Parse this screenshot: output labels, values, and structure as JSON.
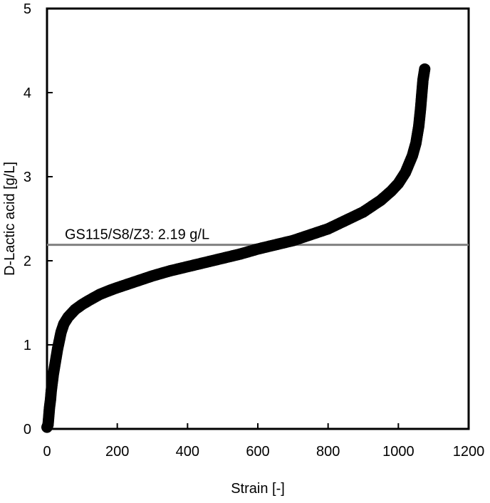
{
  "chart_data": {
    "type": "scatter",
    "title": "",
    "xlabel": "Strain [-]",
    "ylabel": "D-Lactic acid [g/L]",
    "xlim": [
      0,
      1200
    ],
    "ylim": [
      0,
      5
    ],
    "x_ticks": [
      "0",
      "200",
      "400",
      "600",
      "800",
      "1000",
      "1200"
    ],
    "y_ticks": [
      "0",
      "1",
      "2",
      "3",
      "4",
      "5"
    ],
    "grid": false,
    "legend": "none",
    "marker_color": "#000000",
    "reference_line": {
      "label": "GS115/S8/Z3: 2.19 g/L",
      "y": 2.19,
      "color": "#808080"
    },
    "series": [
      {
        "points": [
          [
            0,
            0.02
          ],
          [
            3,
            0.05
          ],
          [
            5,
            0.15
          ],
          [
            7,
            0.25
          ],
          [
            10,
            0.35
          ],
          [
            12,
            0.45
          ],
          [
            15,
            0.55
          ],
          [
            18,
            0.65
          ],
          [
            22,
            0.75
          ],
          [
            26,
            0.85
          ],
          [
            30,
            0.95
          ],
          [
            35,
            1.05
          ],
          [
            40,
            1.15
          ],
          [
            48,
            1.25
          ],
          [
            60,
            1.33
          ],
          [
            80,
            1.42
          ],
          [
            100,
            1.48
          ],
          [
            120,
            1.53
          ],
          [
            150,
            1.6
          ],
          [
            180,
            1.65
          ],
          [
            200,
            1.68
          ],
          [
            250,
            1.75
          ],
          [
            300,
            1.82
          ],
          [
            350,
            1.88
          ],
          [
            400,
            1.93
          ],
          [
            450,
            1.98
          ],
          [
            500,
            2.03
          ],
          [
            550,
            2.08
          ],
          [
            600,
            2.14
          ],
          [
            650,
            2.19
          ],
          [
            700,
            2.24
          ],
          [
            750,
            2.31
          ],
          [
            800,
            2.38
          ],
          [
            850,
            2.48
          ],
          [
            900,
            2.58
          ],
          [
            950,
            2.72
          ],
          [
            980,
            2.83
          ],
          [
            1000,
            2.92
          ],
          [
            1020,
            3.05
          ],
          [
            1040,
            3.25
          ],
          [
            1050,
            3.4
          ],
          [
            1058,
            3.6
          ],
          [
            1063,
            3.8
          ],
          [
            1067,
            4.0
          ],
          [
            1070,
            4.15
          ],
          [
            1075,
            4.28
          ]
        ]
      }
    ]
  }
}
